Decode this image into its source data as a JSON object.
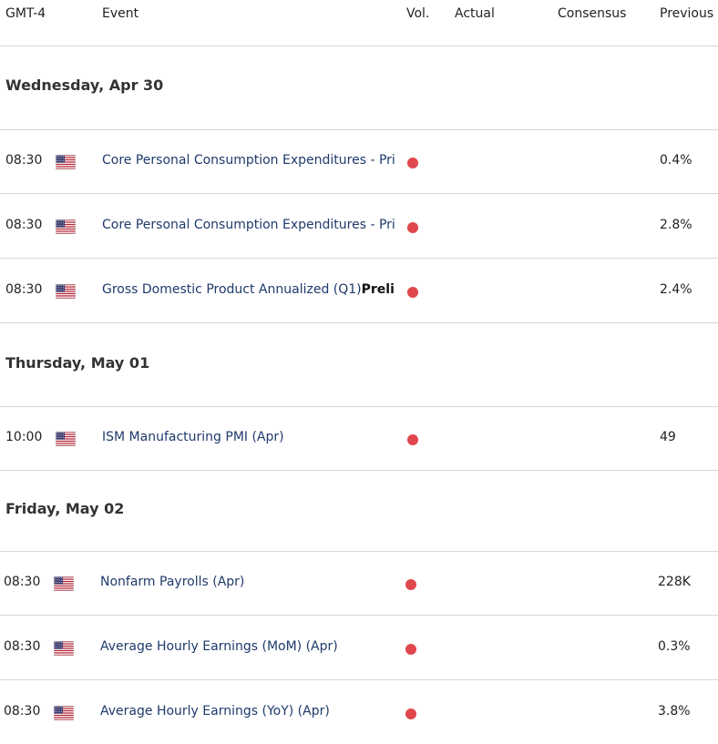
{
  "header": {
    "timezone": "GMT-4",
    "event": "Event",
    "vol": "Vol.",
    "actual": "Actual",
    "consensus": "Consensus",
    "previous": "Previous"
  },
  "colors": {
    "volatility_high": "#e0474c",
    "event_text": "#1f3a6b"
  },
  "days": [
    {
      "label": "Wednesday, Apr 30",
      "events": [
        {
          "time": "08:30",
          "flag": "us-flag-icon",
          "event": "Core Personal Consumption Expenditures - Pri",
          "bold": "",
          "actual": "",
          "consensus": "",
          "previous": "0.4%"
        },
        {
          "time": "08:30",
          "flag": "us-flag-icon",
          "event": "Core Personal Consumption Expenditures - Pri",
          "bold": "",
          "actual": "",
          "consensus": "",
          "previous": "2.8%"
        },
        {
          "time": "08:30",
          "flag": "us-flag-icon",
          "event": "Gross Domestic Product Annualized (Q1)",
          "bold": "Preli",
          "actual": "",
          "consensus": "",
          "previous": "2.4%"
        }
      ]
    },
    {
      "label": "Thursday, May 01",
      "events": [
        {
          "time": "10:00",
          "flag": "us-flag-icon",
          "event": "ISM Manufacturing PMI (Apr)",
          "bold": "",
          "actual": "",
          "consensus": "",
          "previous": "49"
        }
      ]
    },
    {
      "label": "Friday, May 02",
      "events": [
        {
          "time": "08:30",
          "flag": "us-flag-icon",
          "event": "Nonfarm Payrolls (Apr)",
          "bold": "",
          "actual": "",
          "consensus": "",
          "previous": "228K"
        },
        {
          "time": "08:30",
          "flag": "us-flag-icon",
          "event": "Average Hourly Earnings (MoM) (Apr)",
          "bold": "",
          "actual": "",
          "consensus": "",
          "previous": "0.3%"
        },
        {
          "time": "08:30",
          "flag": "us-flag-icon",
          "event": "Average Hourly Earnings (YoY) (Apr)",
          "bold": "",
          "actual": "",
          "consensus": "",
          "previous": "3.8%"
        }
      ]
    }
  ]
}
